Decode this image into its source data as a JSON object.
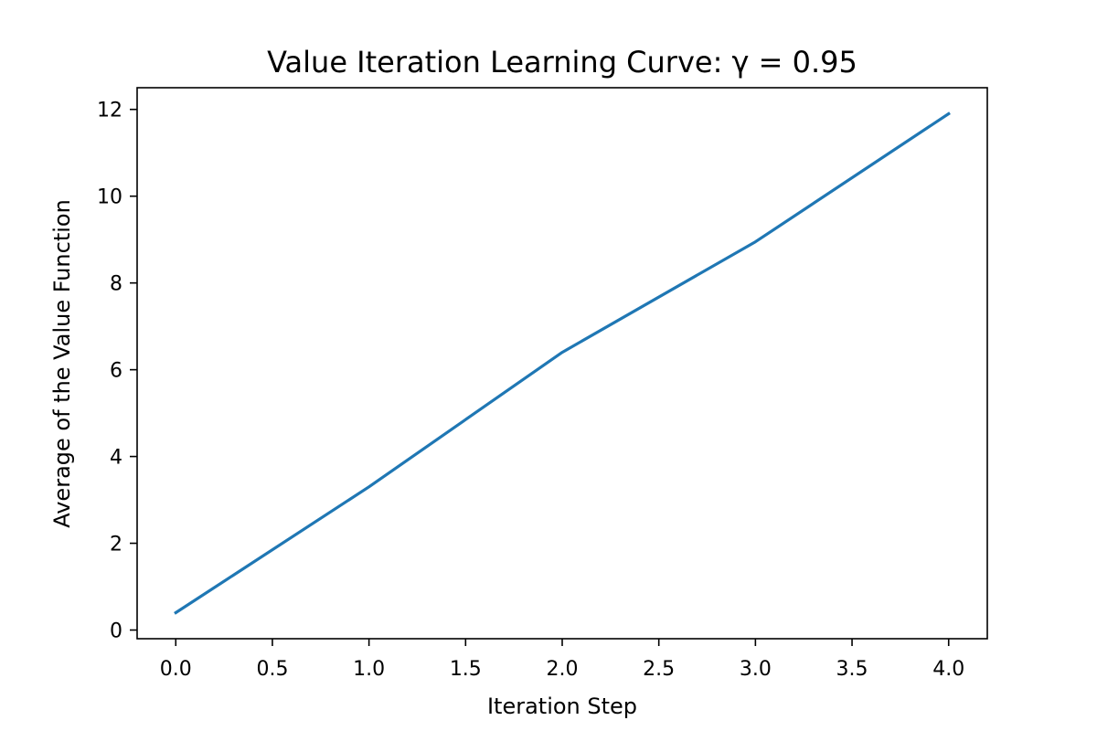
{
  "chart_data": {
    "type": "line",
    "title": "Value Iteration Learning Curve: γ = 0.95",
    "xlabel": "Iteration Step",
    "ylabel": "Average of the Value Function",
    "xlim": [
      -0.2,
      4.2
    ],
    "ylim": [
      -0.2,
      12.5
    ],
    "xticks": [
      0.0,
      0.5,
      1.0,
      1.5,
      2.0,
      2.5,
      3.0,
      3.5,
      4.0
    ],
    "xtick_labels": [
      "0.0",
      "0.5",
      "1.0",
      "1.5",
      "2.0",
      "2.5",
      "3.0",
      "3.5",
      "4.0"
    ],
    "yticks": [
      0,
      2,
      4,
      6,
      8,
      10,
      12
    ],
    "ytick_labels": [
      "0",
      "2",
      "4",
      "6",
      "8",
      "10",
      "12"
    ],
    "grid": false,
    "series": [
      {
        "x": [
          0,
          1,
          2,
          3,
          4
        ],
        "values": [
          0.4,
          3.3,
          6.4,
          8.95,
          11.9
        ],
        "color": "#1f77b4"
      }
    ]
  }
}
